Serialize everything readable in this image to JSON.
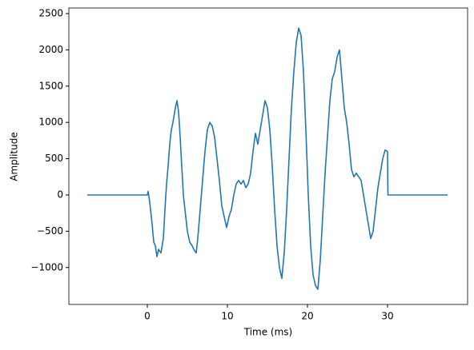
{
  "chart_data": {
    "type": "line",
    "xlabel": "Time (ms)",
    "ylabel": "Amplitude",
    "xlim": [
      -9.8,
      40
    ],
    "ylim": [
      -1509,
      2577
    ],
    "xticks": [
      0,
      10,
      20,
      30
    ],
    "yticks": [
      {
        "value": -1000,
        "label": "−1000"
      },
      {
        "value": -500,
        "label": "−500"
      },
      0,
      500,
      1000,
      1500,
      2000,
      2500
    ],
    "series": [
      {
        "color": "#1f77b4",
        "x": [
          -7.5,
          0,
          0.1,
          0.3,
          0.6,
          0.8,
          1.0,
          1.2,
          1.4,
          1.7,
          2.0,
          2.2,
          2.4,
          2.6,
          2.8,
          3.0,
          3.2,
          3.5,
          3.7,
          3.9,
          4.1,
          4.3,
          4.5,
          4.8,
          5.0,
          5.3,
          5.6,
          5.8,
          6.1,
          6.3,
          6.6,
          6.9,
          7.2,
          7.5,
          7.8,
          8.1,
          8.4,
          8.7,
          9.0,
          9.3,
          9.6,
          9.9,
          10.2,
          10.5,
          10.8,
          11.1,
          11.4,
          11.7,
          12.0,
          12.3,
          12.6,
          12.9,
          13.2,
          13.5,
          13.8,
          14.1,
          14.4,
          14.7,
          15.0,
          15.3,
          15.6,
          15.9,
          16.2,
          16.5,
          16.8,
          17.1,
          17.4,
          17.7,
          18.0,
          18.3,
          18.6,
          18.9,
          19.2,
          19.5,
          19.8,
          20.1,
          20.4,
          20.7,
          21.0,
          21.3,
          21.6,
          21.9,
          22.2,
          22.5,
          22.8,
          23.1,
          23.4,
          23.7,
          24.0,
          24.3,
          24.6,
          24.9,
          25.2,
          25.5,
          25.8,
          26.1,
          26.4,
          26.7,
          27.0,
          27.3,
          27.6,
          27.9,
          28.2,
          28.5,
          28.8,
          29.1,
          29.4,
          29.7,
          30.0,
          30.05,
          37.5
        ],
        "values": [
          0,
          0,
          50,
          -100,
          -400,
          -650,
          -700,
          -850,
          -750,
          -800,
          -600,
          -200,
          150,
          400,
          700,
          900,
          1000,
          1200,
          1300,
          1150,
          800,
          400,
          0,
          -300,
          -500,
          -650,
          -700,
          -750,
          -800,
          -600,
          -200,
          200,
          600,
          900,
          1000,
          950,
          800,
          500,
          200,
          -150,
          -300,
          -450,
          -300,
          -200,
          0,
          150,
          200,
          150,
          200,
          100,
          150,
          300,
          600,
          850,
          700,
          900,
          1100,
          1300,
          1200,
          900,
          400,
          -200,
          -700,
          -1000,
          -1150,
          -800,
          -200,
          500,
          1200,
          1700,
          2100,
          2300,
          2200,
          1700,
          900,
          0,
          -700,
          -1100,
          -1250,
          -1300,
          -900,
          -300,
          300,
          800,
          1300,
          1600,
          1700,
          1900,
          2000,
          1600,
          1200,
          1000,
          700,
          350,
          250,
          300,
          250,
          200,
          0,
          -200,
          -400,
          -600,
          -500,
          -200,
          100,
          300,
          500,
          620,
          600,
          0,
          0
        ]
      }
    ]
  }
}
